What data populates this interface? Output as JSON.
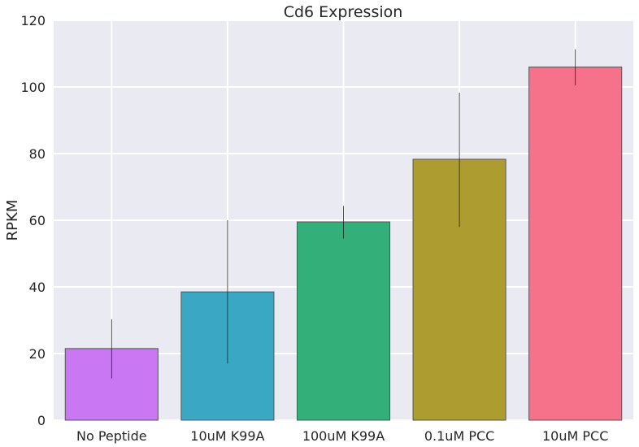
{
  "chart_data": {
    "type": "bar",
    "title": "Cd6 Expression",
    "xlabel": "",
    "ylabel": "RPKM",
    "categories": [
      "No Peptide",
      "10uM K99A",
      "100uM K99A",
      "0.1uM PCC",
      "10uM PCC"
    ],
    "values": [
      21.5,
      38.5,
      59.5,
      78.3,
      106.0
    ],
    "error_low": [
      12.5,
      17.0,
      54.5,
      58.0,
      100.5
    ],
    "error_high": [
      30.3,
      60.0,
      64.3,
      98.3,
      111.3
    ],
    "colors": [
      "#c977f2",
      "#3aa8c5",
      "#33b07a",
      "#ad9d30",
      "#f6728a"
    ],
    "ylim": [
      0,
      120
    ],
    "yticks": [
      0,
      20,
      40,
      60,
      80,
      100,
      120
    ],
    "grid": true,
    "legend": "none",
    "background": "#eaeaf2",
    "edge_color": "#555555"
  }
}
